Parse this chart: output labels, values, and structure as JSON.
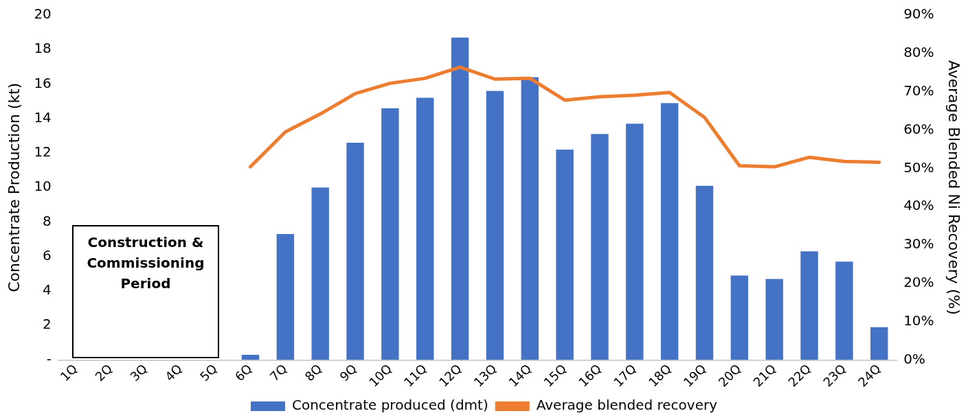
{
  "chart_data": {
    "type": "bar",
    "categories": [
      "1Q",
      "2Q",
      "3Q",
      "4Q",
      "5Q",
      "6Q",
      "7Q",
      "8Q",
      "9Q",
      "10Q",
      "11Q",
      "12Q",
      "13Q",
      "14Q",
      "15Q",
      "16Q",
      "17Q",
      "18Q",
      "19Q",
      "20Q",
      "21Q",
      "22Q",
      "23Q",
      "24Q"
    ],
    "series": [
      {
        "name": "Concentrate produced (dmt)",
        "color": "#4472c4",
        "values": [
          null,
          null,
          null,
          null,
          null,
          0.3,
          7.3,
          10.0,
          12.6,
          14.6,
          15.2,
          18.7,
          15.6,
          16.4,
          12.2,
          13.1,
          13.7,
          14.9,
          10.1,
          4.9,
          4.7,
          6.3,
          5.7,
          1.9
        ]
      },
      {
        "name": "Average blended recovery",
        "type": "line",
        "axis": "y2",
        "color": "#ed7d31",
        "values": [
          null,
          null,
          null,
          null,
          null,
          50.4,
          59.5,
          64.2,
          69.5,
          72.2,
          73.5,
          76.4,
          73.3,
          73.5,
          67.8,
          68.7,
          69.1,
          69.8,
          63.3,
          50.7,
          50.4,
          52.9,
          51.8,
          51.6
        ]
      }
    ],
    "ylabel": "Concentrate Production (kt)",
    "y2label": "Average Blended Ni Recovery (%)",
    "ylim": [
      0,
      20
    ],
    "yticks": [
      {
        "value": 0,
        "label": "-"
      },
      2,
      4,
      6,
      8,
      10,
      12,
      14,
      16,
      18,
      20
    ],
    "y2lim": [
      0,
      90
    ],
    "y2ticks": [
      {
        "value": 0,
        "label": "0%"
      },
      {
        "value": 10,
        "label": "10%"
      },
      {
        "value": 20,
        "label": "20%"
      },
      {
        "value": 30,
        "label": "30%"
      },
      {
        "value": 40,
        "label": "40%"
      },
      {
        "value": 50,
        "label": "50%"
      },
      {
        "value": 60,
        "label": "60%"
      },
      {
        "value": 70,
        "label": "70%"
      },
      {
        "value": 80,
        "label": "80%"
      },
      {
        "value": 90,
        "label": "90%"
      }
    ],
    "annotations": [
      "Construction & Commissioning Period"
    ],
    "legend": "bottom",
    "grid": false,
    "marker": "none"
  }
}
